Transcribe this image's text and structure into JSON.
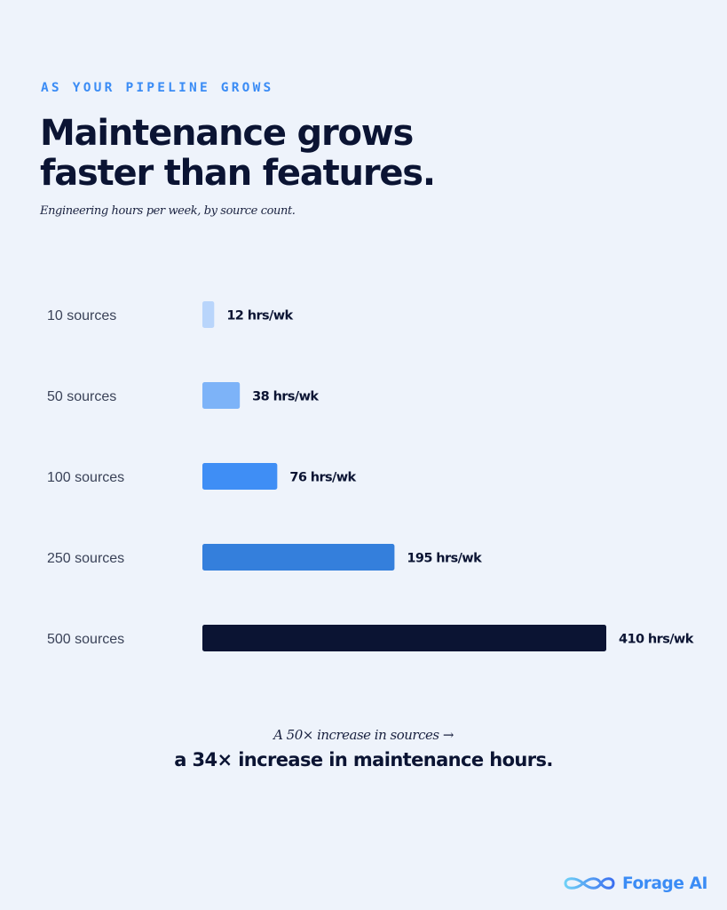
{
  "eyebrow": "AS YOUR PIPELINE GROWS",
  "headline_line1": "Maintenance grows",
  "headline_line2": "faster than features.",
  "subtitle": "Engineering hours per week, by source count.",
  "footnote": "A 50× increase in sources →",
  "conclusion": "a 34× increase in maintenance hours.",
  "brand": "Forage AI",
  "colors": {
    "background": "#eef3fb",
    "accent": "#3b8cf5",
    "dark": "#0b1433",
    "bars": [
      "#b9d5fb",
      "#7db3f8",
      "#3f8ef5",
      "#347fdc",
      "#0b1433"
    ]
  },
  "chart_data": {
    "type": "bar",
    "orientation": "horizontal",
    "categories": [
      "10 sources",
      "50 sources",
      "100 sources",
      "250 sources",
      "500 sources"
    ],
    "values": [
      12,
      38,
      76,
      195,
      410
    ],
    "value_labels": [
      "12 hrs/wk",
      "38 hrs/wk",
      "76 hrs/wk",
      "195 hrs/wk",
      "410 hrs/wk"
    ],
    "unit": "hrs/wk",
    "title": "",
    "xlabel": "",
    "ylabel": "",
    "xlim": [
      0,
      410
    ],
    "grid": false,
    "legend": "none"
  }
}
